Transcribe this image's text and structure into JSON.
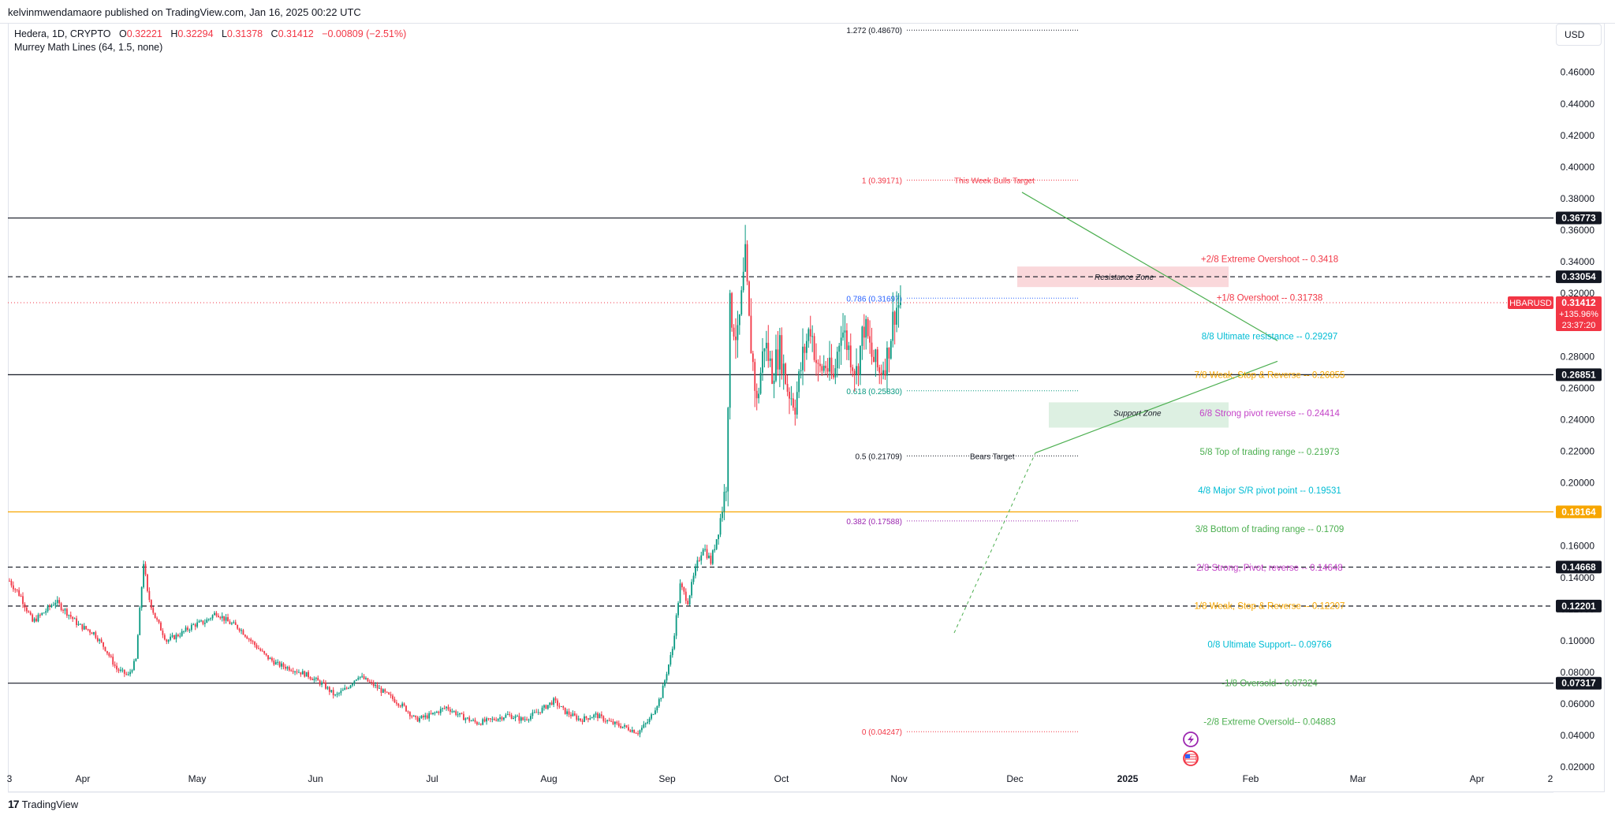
{
  "header": {
    "publish_line": "kelvinmwendamaore published on TradingView.com, Jan 16, 2025 00:22 UTC"
  },
  "legend": {
    "symbol_line": "Hedera, 1D, CRYPTO",
    "ohlc": [
      {
        "key": "O",
        "value": "0.32221"
      },
      {
        "key": "H",
        "value": "0.32294"
      },
      {
        "key": "L",
        "value": "0.31378"
      },
      {
        "key": "C",
        "value": "0.31412"
      }
    ],
    "change": "−0.00809 (−2.51%)",
    "indicator": "Murrey Math Lines (64, 1.5, none)"
  },
  "currency": "USD",
  "footer": {
    "brand": "TradingView",
    "logo_text": "17"
  },
  "colors": {
    "up": "#089981",
    "down": "#f23645",
    "orange": "#f7a600",
    "purple": "#c444c8",
    "cyan": "#00bcd4",
    "green_text": "#4caf50",
    "fib": "#131722"
  },
  "chart_data": {
    "type": "candlestick",
    "symbol": "HBARUSD",
    "price_scale": {
      "min": 0.0,
      "max": 0.48,
      "ticks": [
        0.02,
        0.04,
        0.06,
        0.08,
        0.1,
        0.12,
        0.14,
        0.16,
        0.18,
        0.2,
        0.22,
        0.24,
        0.26,
        0.28,
        0.3,
        0.32,
        0.34,
        0.36,
        0.38,
        0.4,
        0.42,
        0.44,
        0.46
      ]
    },
    "time_axis": [
      "3",
      "Apr",
      "May",
      "Jun",
      "Jul",
      "Aug",
      "Sep",
      "Oct",
      "Nov",
      "Dec",
      "2025",
      "Feb",
      "Mar",
      "Apr",
      "2"
    ],
    "price_path": [
      [
        0,
        0.138
      ],
      [
        6,
        0.128
      ],
      [
        12,
        0.112
      ],
      [
        18,
        0.118
      ],
      [
        24,
        0.125
      ],
      [
        30,
        0.118
      ],
      [
        36,
        0.11
      ],
      [
        44,
        0.105
      ],
      [
        50,
        0.095
      ],
      [
        56,
        0.082
      ],
      [
        62,
        0.078
      ],
      [
        66,
        0.088
      ],
      [
        70,
        0.15
      ],
      [
        72,
        0.13
      ],
      [
        76,
        0.115
      ],
      [
        82,
        0.1
      ],
      [
        90,
        0.105
      ],
      [
        96,
        0.11
      ],
      [
        102,
        0.112
      ],
      [
        108,
        0.118
      ],
      [
        114,
        0.112
      ],
      [
        120,
        0.108
      ],
      [
        126,
        0.1
      ],
      [
        134,
        0.09
      ],
      [
        140,
        0.085
      ],
      [
        148,
        0.082
      ],
      [
        156,
        0.078
      ],
      [
        164,
        0.072
      ],
      [
        170,
        0.065
      ],
      [
        176,
        0.07
      ],
      [
        182,
        0.078
      ],
      [
        190,
        0.072
      ],
      [
        198,
        0.065
      ],
      [
        206,
        0.058
      ],
      [
        212,
        0.05
      ],
      [
        220,
        0.053
      ],
      [
        228,
        0.058
      ],
      [
        236,
        0.052
      ],
      [
        244,
        0.048
      ],
      [
        252,
        0.05
      ],
      [
        260,
        0.053
      ],
      [
        268,
        0.05
      ],
      [
        276,
        0.055
      ],
      [
        284,
        0.062
      ],
      [
        290,
        0.055
      ],
      [
        298,
        0.05
      ],
      [
        306,
        0.053
      ],
      [
        314,
        0.048
      ],
      [
        322,
        0.045
      ],
      [
        328,
        0.042
      ],
      [
        334,
        0.05
      ],
      [
        340,
        0.065
      ],
      [
        346,
        0.095
      ],
      [
        350,
        0.135
      ],
      [
        354,
        0.125
      ],
      [
        358,
        0.145
      ],
      [
        362,
        0.16
      ],
      [
        366,
        0.15
      ],
      [
        370,
        0.17
      ],
      [
        374,
        0.2
      ],
      [
        376,
        0.31
      ],
      [
        380,
        0.29
      ],
      [
        384,
        0.34
      ],
      [
        386,
        0.3
      ],
      [
        390,
        0.25
      ],
      [
        394,
        0.29
      ],
      [
        398,
        0.27
      ],
      [
        402,
        0.285
      ],
      [
        406,
        0.26
      ],
      [
        410,
        0.25
      ],
      [
        414,
        0.28
      ],
      [
        418,
        0.3
      ],
      [
        422,
        0.27
      ],
      [
        426,
        0.275
      ],
      [
        430,
        0.265
      ],
      [
        434,
        0.3
      ],
      [
        438,
        0.285
      ],
      [
        442,
        0.27
      ],
      [
        446,
        0.3
      ],
      [
        450,
        0.28
      ],
      [
        454,
        0.27
      ],
      [
        458,
        0.28
      ],
      [
        462,
        0.31
      ],
      [
        465,
        0.314
      ]
    ],
    "fib_levels": [
      {
        "label": "1.272 (0.48670)",
        "value": 0.4867,
        "color": "#131722"
      },
      {
        "label": "1 (0.39171)",
        "value": 0.39171,
        "color": "#f23645"
      },
      {
        "label": "0.786 (0.31697)",
        "value": 0.31697,
        "color": "#2962ff"
      },
      {
        "label": "0.618 (0.25830)",
        "value": 0.2583,
        "color": "#089981"
      },
      {
        "label": "0.5 (0.21709)",
        "value": 0.21709,
        "color": "#131722"
      },
      {
        "label": "0.382 (0.17588)",
        "value": 0.17588,
        "color": "#9c27b0"
      },
      {
        "label": "0 (0.04247)",
        "value": 0.04247,
        "color": "#f23645"
      }
    ],
    "murrey_levels": [
      {
        "label": "+2/8 Extreme Overshoot --  0.3418",
        "value": 0.3418,
        "color": "#f23645"
      },
      {
        "label": "+1/8 Overshoot --  0.31738",
        "value": 0.31738,
        "color": "#f23645"
      },
      {
        "label": "8/8 Ultimate resistance --  0.29297",
        "value": 0.29297,
        "color": "#00bcd4"
      },
      {
        "label": "7/8 Weak, Stop & Reverse --  0.26855",
        "value": 0.26855,
        "color": "#f7a600"
      },
      {
        "label": "6/8 Strong pivot reverse --  0.24414",
        "value": 0.24414,
        "color": "#c444c8"
      },
      {
        "label": "5/8 Top of trading range --  0.21973",
        "value": 0.21973,
        "color": "#4caf50"
      },
      {
        "label": "4/8 Major S/R pivot point --  0.19531",
        "value": 0.19531,
        "color": "#00bcd4"
      },
      {
        "label": "3/8 Bottom of trading range --  0.1709",
        "value": 0.1709,
        "color": "#4caf50"
      },
      {
        "label": "2/8 Strong, Pivot, reverse --  0.14648",
        "value": 0.14648,
        "color": "#c444c8"
      },
      {
        "label": "1/8 Weak, Stop & Reverse --  0.12207",
        "value": 0.12207,
        "color": "#f7a600"
      },
      {
        "label": "0/8 Ultimate Support--  0.09766",
        "value": 0.09766,
        "color": "#00bcd4"
      },
      {
        "label": "-1/8 Oversold--  0.07324",
        "value": 0.07324,
        "color": "#4caf50"
      },
      {
        "label": "-2/8 Extreme Oversold--  0.04883",
        "value": 0.04883,
        "color": "#4caf50"
      }
    ],
    "horizontal_lines": [
      {
        "value": 0.36773,
        "label": "0.36773",
        "style": "solid",
        "color": "#131722"
      },
      {
        "value": 0.33054,
        "label": "0.33054",
        "style": "dashed",
        "color": "#131722"
      },
      {
        "value": 0.26851,
        "label": "0.26851",
        "style": "solid",
        "color": "#131722"
      },
      {
        "value": 0.18164,
        "label": "0.18164",
        "style": "solid",
        "color": "#f7a600"
      },
      {
        "value": 0.14668,
        "label": "0.14668",
        "style": "dashed",
        "color": "#131722"
      },
      {
        "value": 0.12201,
        "label": "0.12201",
        "style": "dashed",
        "color": "#131722"
      },
      {
        "value": 0.07317,
        "label": "0.07317",
        "style": "solid",
        "color": "#131722"
      }
    ],
    "last_price": {
      "symbol": "HBARUSD",
      "value": 0.31412,
      "label": "0.31412",
      "change": "+135.96%",
      "countdown": "23:37:20"
    },
    "annotations": {
      "bulls_target": "This Week Bulls Target",
      "bears_target": "Bears Target",
      "resistance_zone": "Resistance Zone",
      "support_zone": "Support Zone",
      "resistance_zone_range": [
        0.324,
        0.337
      ],
      "support_zone_range": [
        0.235,
        0.251
      ]
    }
  }
}
